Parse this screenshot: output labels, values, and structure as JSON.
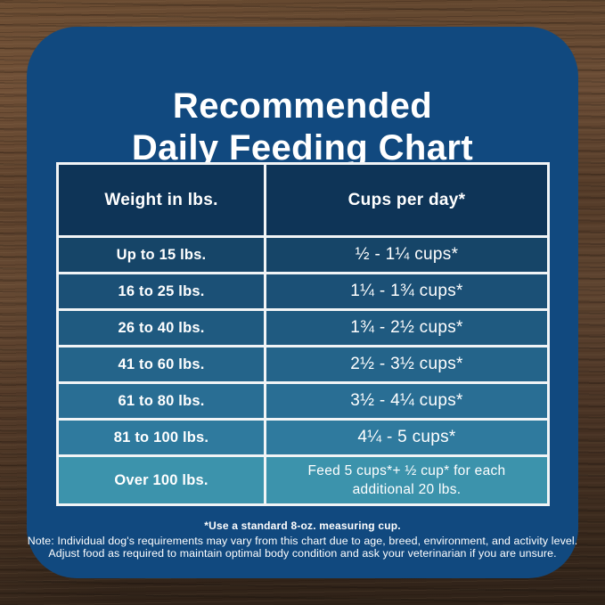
{
  "title": {
    "line1": "Recommended",
    "line2": "Daily Feeding Chart"
  },
  "chart_data": {
    "type": "table",
    "title": "Recommended Daily Feeding Chart",
    "columns": [
      "Weight in lbs.",
      "Cups per day*"
    ],
    "rows": [
      [
        "Up to 15 lbs.",
        "½ - 1¼ cups*"
      ],
      [
        "16 to 25 lbs.",
        "1¼ - 1¾ cups*"
      ],
      [
        "26 to 40 lbs.",
        "1¾ - 2½ cups*"
      ],
      [
        "41 to 60 lbs.",
        "2½ - 3½ cups*"
      ],
      [
        "61 to 80 lbs.",
        "3½ - 4¼ cups*"
      ],
      [
        "81 to 100 lbs.",
        "4¼ - 5 cups*"
      ],
      [
        "Over 100 lbs.",
        "Feed 5 cups*+ ½ cup* for each additional 20 lbs."
      ]
    ],
    "footnotes": [
      "*Use a standard 8-oz. measuring cup.",
      "Note: Individual dog's requirements may vary from this chart due to age, breed, environment, and activity level.",
      "Adjust food as required to maintain optimal body condition and ask your veterinarian if you are unsure."
    ]
  },
  "table_style": {
    "header_color": "#0e3457",
    "row_colors": [
      "#164568",
      "#1b5076",
      "#1f5a80",
      "#24648a",
      "#296e94",
      "#2f7a9e",
      "#3c93ac"
    ],
    "border_color": "#f1f4f6"
  },
  "colors": {
    "card_bg": "#11497f",
    "text": "#ffffff",
    "wood_light": "#6b4d36",
    "wood_dark": "#2f2218"
  }
}
